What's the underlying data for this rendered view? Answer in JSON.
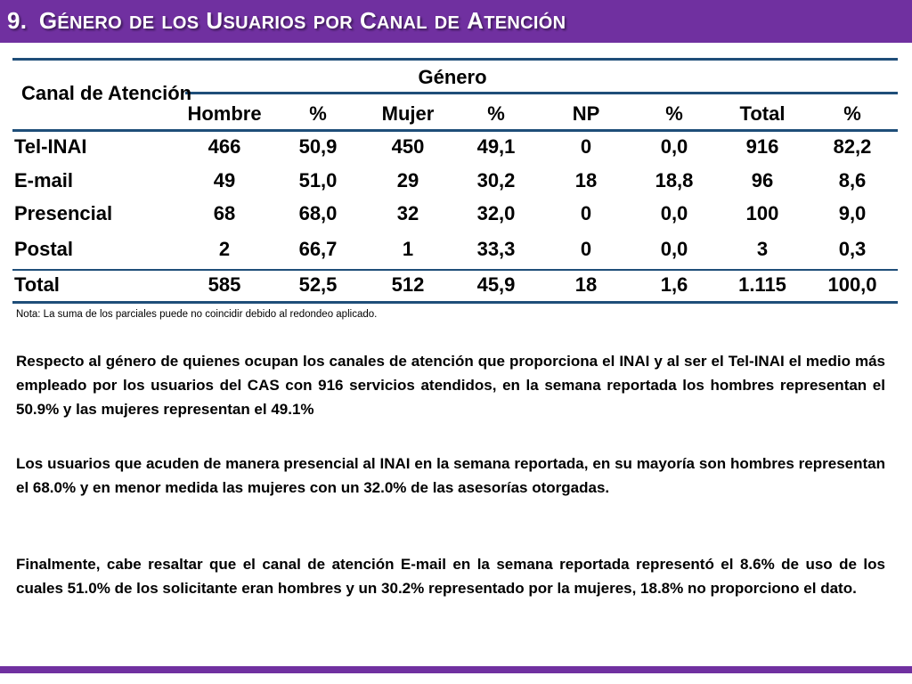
{
  "title": {
    "number": "9.",
    "words": [
      {
        "initial": "G",
        "rest": "ÉNERO"
      },
      {
        "initial": "",
        "rest": "DE"
      },
      {
        "initial": "",
        "rest": "LOS"
      },
      {
        "initial": "U",
        "rest": "SUARIOS"
      },
      {
        "initial": "",
        "rest": "POR"
      },
      {
        "initial": "C",
        "rest": "ANAL"
      },
      {
        "initial": "",
        "rest": "DE"
      },
      {
        "initial": "A",
        "rest": "TENCIÓN"
      }
    ]
  },
  "table": {
    "row_header": "Canal de Atención",
    "group_header": "Género",
    "columns": [
      "Hombre",
      "%",
      "Mujer",
      "%",
      "NP",
      "%",
      "Total",
      "%"
    ],
    "rows": [
      {
        "label": "Tel-INAI",
        "values": [
          "466",
          "50,9",
          "450",
          "49,1",
          "0",
          "0,0",
          "916",
          "82,2"
        ]
      },
      {
        "label": "E-mail",
        "values": [
          "49",
          "51,0",
          "29",
          "30,2",
          "18",
          "18,8",
          "96",
          "8,6"
        ]
      },
      {
        "label": "Presencial",
        "values": [
          "68",
          "68,0",
          "32",
          "32,0",
          "0",
          "0,0",
          "100",
          "9,0"
        ]
      },
      {
        "label": "Postal",
        "values": [
          "2",
          "66,7",
          "1",
          "33,3",
          "0",
          "0,0",
          "3",
          "0,3"
        ]
      },
      {
        "label": "Total",
        "values": [
          "585",
          "52,5",
          "512",
          "45,9",
          "18",
          "1,6",
          "1.115",
          "100,0"
        ]
      }
    ]
  },
  "note": "Nota: La suma de los parciales puede no coincidir debido al redondeo aplicado.",
  "paragraphs": [
    "Respecto al género de quienes ocupan los canales de atención que proporciona el INAI y al ser el Tel-INAI el medio más empleado por los usuarios del CAS con 916 servicios atendidos, en la semana reportada los hombres representan el 50.9% y las mujeres representan el 49.1%",
    "Los usuarios que acuden de manera presencial al INAI en la semana reportada, en su mayoría son hombres representan el 68.0% y en menor medida las mujeres con un 32.0% de las asesorías otorgadas.",
    "Finalmente, cabe resaltar que el canal de atención E-mail en la semana reportada representó el 8.6% de uso de los cuales 51.0% de los solicitante eran hombres y un 30.2% representado por la mujeres, 18.8% no proporciono el dato."
  ],
  "colors": {
    "accent": "#7030a0",
    "rule": "#1f4e79"
  }
}
